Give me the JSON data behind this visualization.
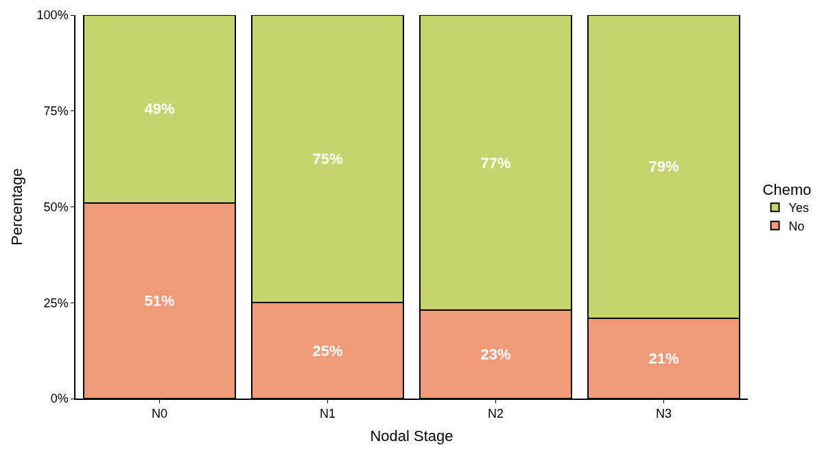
{
  "chart_data": {
    "type": "bar",
    "stacked": true,
    "xlabel": "Nodal Stage",
    "ylabel": "Percentage",
    "legend_title": "Chemo",
    "legend": "right",
    "categories": [
      "N0",
      "N1",
      "N2",
      "N3"
    ],
    "series": [
      {
        "name": "No",
        "color": "#ef9a78",
        "values": [
          51,
          25,
          23,
          21
        ],
        "value_labels": [
          "51%",
          "25%",
          "23%",
          "21%"
        ]
      },
      {
        "name": "Yes",
        "color": "#c5d46f",
        "values": [
          49,
          75,
          77,
          79
        ],
        "value_labels": [
          "49%",
          "75%",
          "77%",
          "79%"
        ]
      }
    ],
    "ylim": [
      0,
      100
    ],
    "yticks": [
      {
        "value": 0,
        "label": "0%"
      },
      {
        "value": 25,
        "label": "25%"
      },
      {
        "value": 50,
        "label": "50%"
      },
      {
        "value": 75,
        "label": "75%"
      },
      {
        "value": 100,
        "label": "100%"
      }
    ]
  }
}
